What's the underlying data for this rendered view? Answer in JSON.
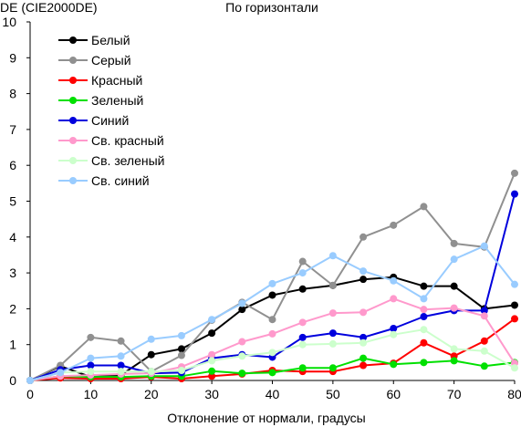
{
  "chart_data": {
    "type": "line",
    "title": "По горизонтали",
    "ylabel": "DE (CIE2000DE)",
    "xlabel": "Отклонение от нормали, градусы",
    "xlim": [
      0,
      80
    ],
    "ylim": [
      0,
      10
    ],
    "x_ticks": [
      "0",
      "10",
      "20",
      "30",
      "40",
      "50",
      "60",
      "70",
      "80"
    ],
    "y_ticks": [
      "0",
      "1",
      "2",
      "3",
      "4",
      "5",
      "6",
      "7",
      "8",
      "9",
      "10"
    ],
    "grid": false,
    "legend_position": "top-left",
    "x": [
      0,
      5,
      10,
      15,
      20,
      25,
      30,
      35,
      40,
      45,
      50,
      55,
      60,
      65,
      70,
      75,
      80
    ],
    "series": [
      {
        "name": "Белый",
        "color": "#000000",
        "values": [
          0,
          0.4,
          0.1,
          0.15,
          0.72,
          0.88,
          1.32,
          1.98,
          2.38,
          2.55,
          2.65,
          2.82,
          2.88,
          2.63,
          2.63,
          2.0,
          2.1
        ]
      },
      {
        "name": "Серый",
        "color": "#909090",
        "values": [
          0,
          0.42,
          1.2,
          1.1,
          0.25,
          0.7,
          1.68,
          2.18,
          1.7,
          3.32,
          2.65,
          4.0,
          4.33,
          4.85,
          3.82,
          3.72,
          5.78
        ]
      },
      {
        "name": "Красный",
        "color": "#ff0000",
        "values": [
          0,
          0.07,
          0.05,
          0.05,
          0.1,
          0.05,
          0.12,
          0.18,
          0.28,
          0.25,
          0.25,
          0.42,
          0.48,
          1.05,
          0.68,
          1.1,
          1.72
        ]
      },
      {
        "name": "Зеленый",
        "color": "#00e000",
        "values": [
          0,
          0.12,
          0.1,
          0.1,
          0.12,
          0.12,
          0.26,
          0.2,
          0.22,
          0.35,
          0.35,
          0.62,
          0.45,
          0.5,
          0.55,
          0.4,
          0.5
        ]
      },
      {
        "name": "Синий",
        "color": "#0000dd",
        "values": [
          0,
          0.3,
          0.42,
          0.42,
          0.2,
          0.22,
          0.62,
          0.72,
          0.65,
          1.2,
          1.32,
          1.2,
          1.45,
          1.78,
          1.95,
          1.95,
          5.2
        ]
      },
      {
        "name": "Св. красный",
        "color": "#ff99cc",
        "values": [
          0,
          0.12,
          0.15,
          0.18,
          0.2,
          0.38,
          0.72,
          1.08,
          1.3,
          1.62,
          1.88,
          1.9,
          2.28,
          1.98,
          2.02,
          1.8,
          0.48
        ]
      },
      {
        "name": "Св. зеленый",
        "color": "#ccffcc",
        "values": [
          0,
          0.22,
          0.25,
          0.25,
          0.25,
          0.28,
          0.55,
          0.68,
          0.78,
          1.0,
          1.02,
          1.05,
          1.28,
          1.42,
          0.88,
          0.82,
          0.35
        ]
      },
      {
        "name": "Св. синий",
        "color": "#99ccff",
        "values": [
          0,
          0.22,
          0.62,
          0.68,
          1.15,
          1.25,
          1.7,
          2.15,
          2.7,
          3.0,
          3.48,
          3.05,
          2.78,
          2.28,
          3.38,
          3.75,
          2.68
        ]
      }
    ]
  }
}
